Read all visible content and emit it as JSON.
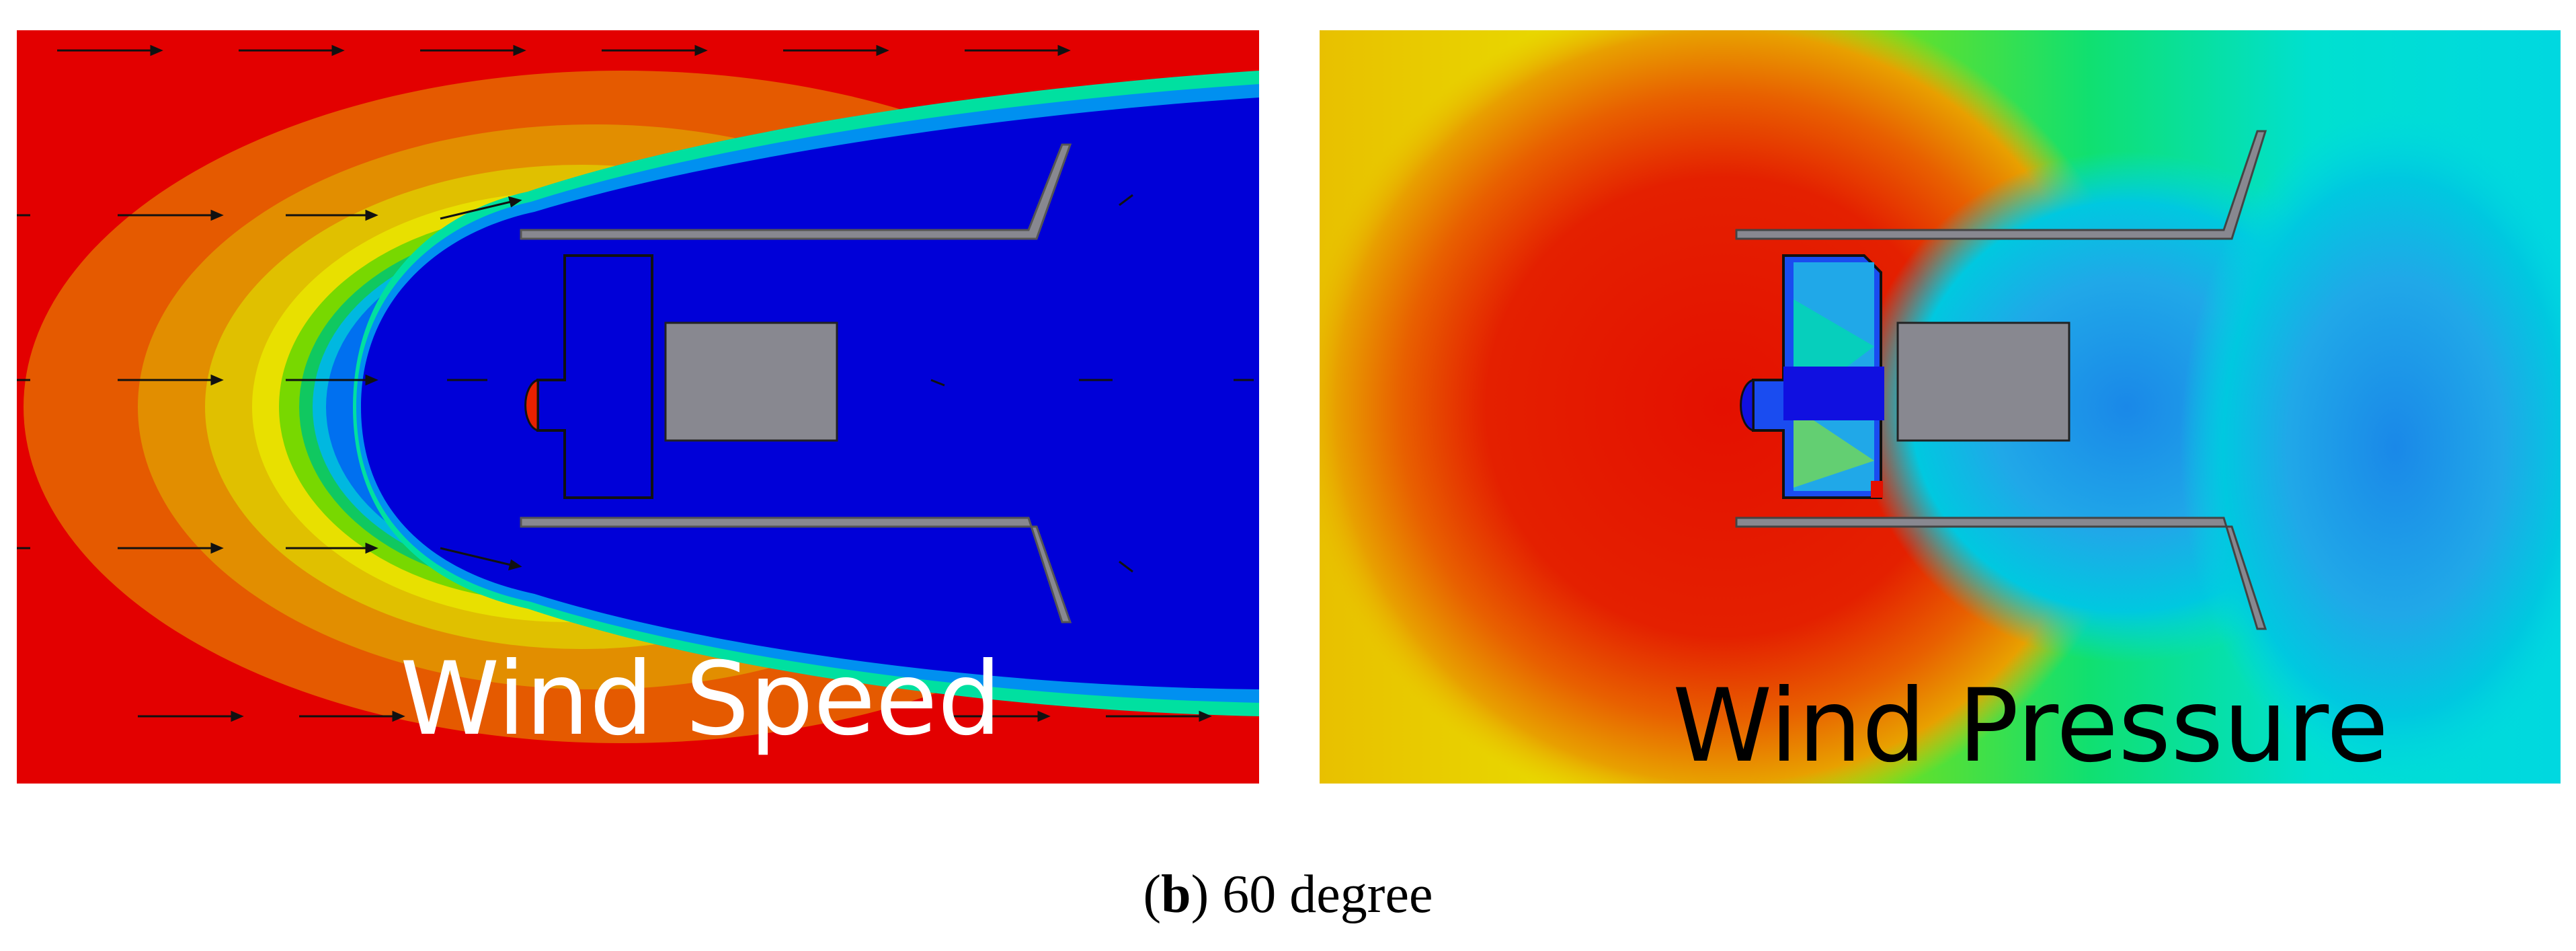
{
  "panels": [
    {
      "id": "wind-speed",
      "label": "Wind Speed"
    },
    {
      "id": "wind-pressure",
      "label": "Wind Pressure"
    }
  ],
  "caption": {
    "open_paren": "(",
    "letter": "b",
    "close_paren": ")",
    "text": " 60 degree"
  },
  "colors": {
    "speed_background": "#e30000",
    "speed_wake": "#0000d8",
    "pressure_high": "#e41000",
    "pressure_low": "#1aa0e6",
    "structure_gray": "#888890"
  }
}
